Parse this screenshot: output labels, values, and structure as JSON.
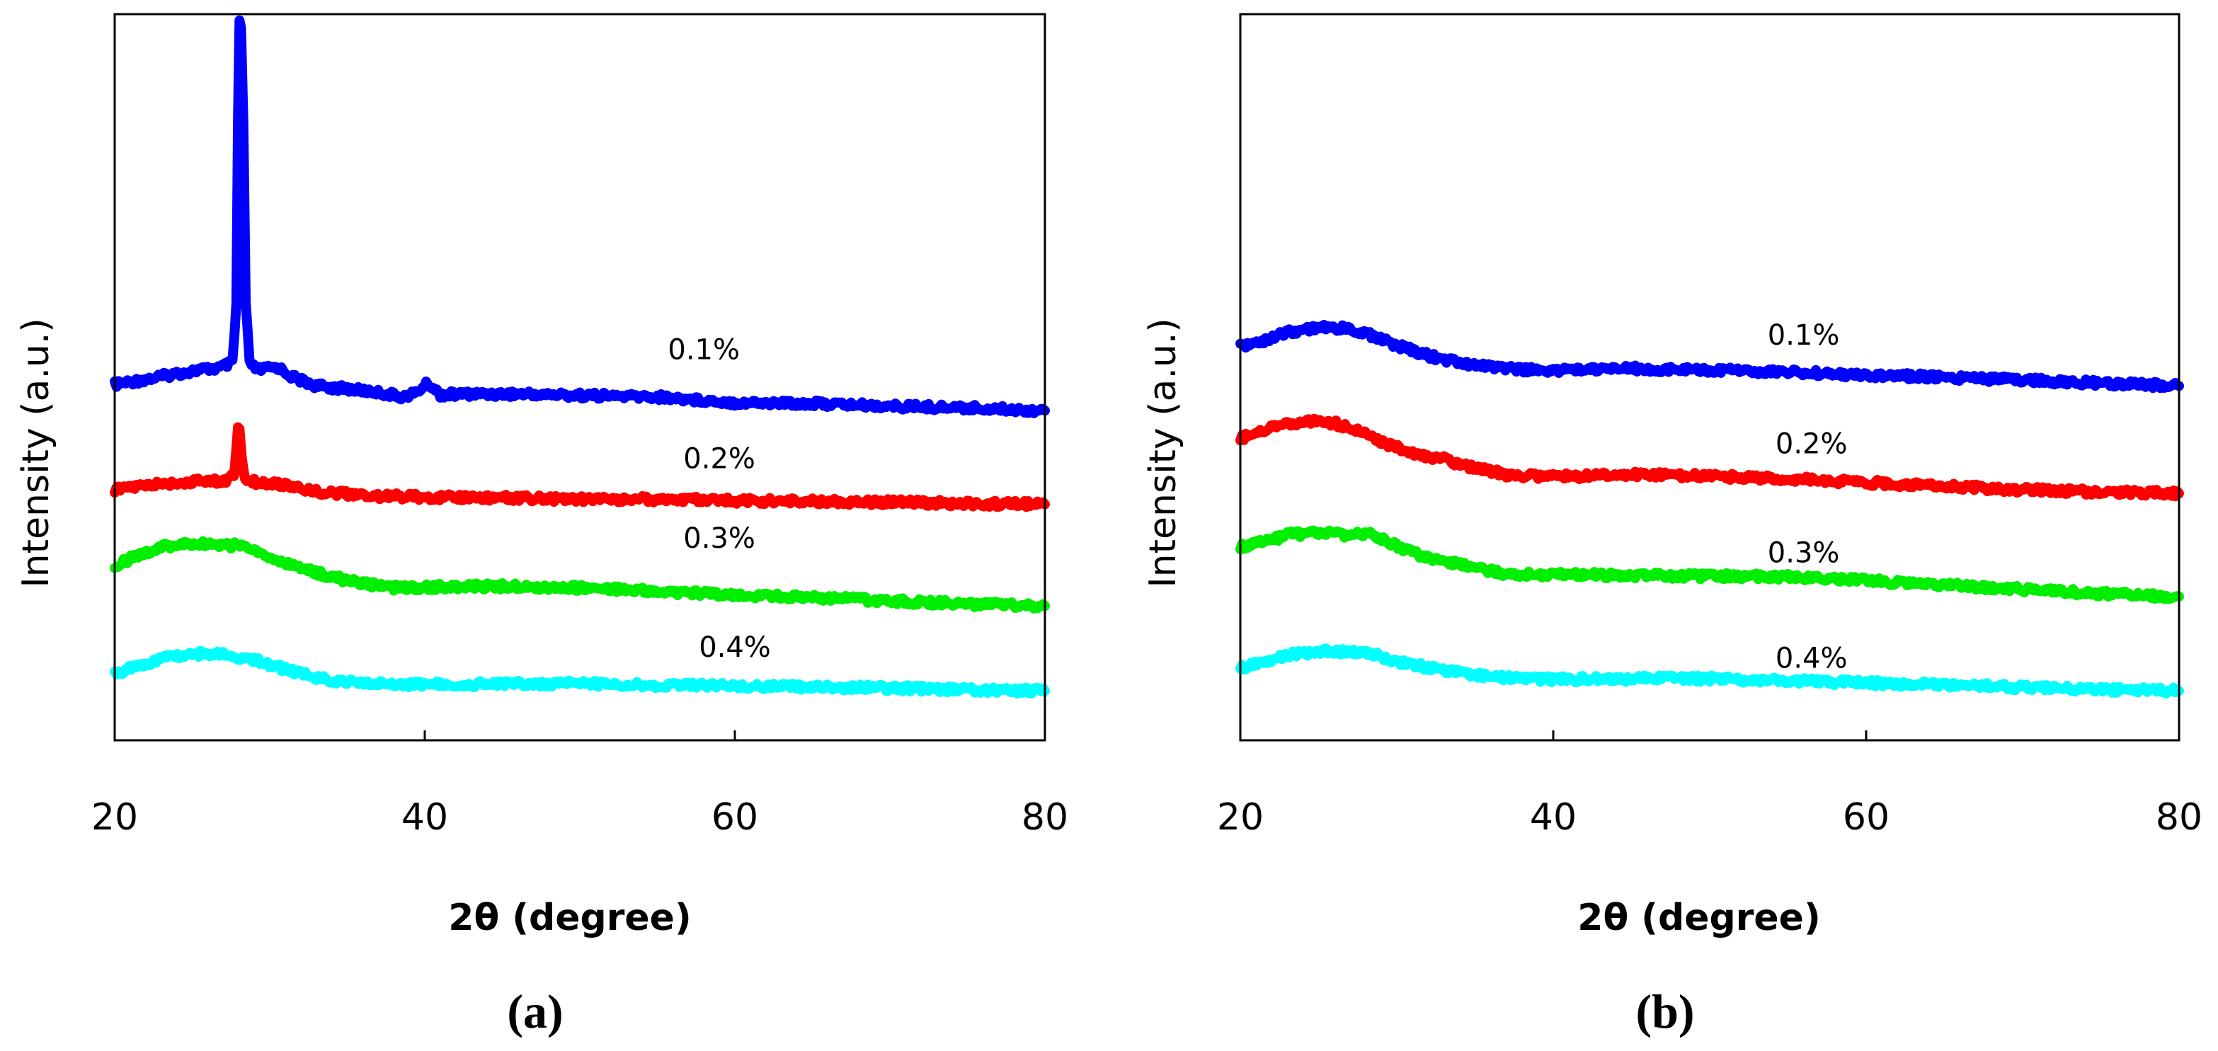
{
  "chart_data": [
    {
      "type": "line",
      "panel_label": "(a)",
      "title": "",
      "xlabel": "2θ (degree)",
      "ylabel": "Intensity (a.u.)",
      "xlim": [
        20,
        80
      ],
      "ylim": [
        0,
        100
      ],
      "xticks": [
        20,
        40,
        60,
        80
      ],
      "grid": false,
      "legend": "inline labels above each curve",
      "series": [
        {
          "name": "0.1%",
          "color": "#0000ff",
          "label_at": [
            58,
            52.5
          ],
          "points": [
            [
              20,
              49
            ],
            [
              22,
              49.7
            ],
            [
              24,
              50.5
            ],
            [
              25.5,
              51
            ],
            [
              26.8,
              51.3
            ],
            [
              27.6,
              52
            ],
            [
              27.85,
              60
            ],
            [
              27.95,
              85
            ],
            [
              28.05,
              99
            ],
            [
              28.15,
              98
            ],
            [
              28.3,
              85
            ],
            [
              28.45,
              60
            ],
            [
              28.7,
              52
            ],
            [
              29.2,
              51
            ],
            [
              30.5,
              51.4
            ],
            [
              31.5,
              50
            ],
            [
              33,
              48.8
            ],
            [
              35,
              48.4
            ],
            [
              37,
              47.9
            ],
            [
              38.6,
              47.3
            ],
            [
              39.4,
              47.8
            ],
            [
              40.2,
              49.2
            ],
            [
              41,
              47.6
            ],
            [
              43,
              47.7
            ],
            [
              46,
              47.7
            ],
            [
              50,
              47.5
            ],
            [
              55,
              47.3
            ],
            [
              60,
              46.5
            ],
            [
              65,
              46.4
            ],
            [
              70,
              46
            ],
            [
              75,
              45.8
            ],
            [
              80,
              45.4
            ]
          ]
        },
        {
          "name": "0.2%",
          "color": "#ff0000",
          "label_at": [
            59,
            37.5
          ],
          "points": [
            [
              20,
              34.5
            ],
            [
              22,
              35.1
            ],
            [
              25,
              35.6
            ],
            [
              27.3,
              35.8
            ],
            [
              27.7,
              36.5
            ],
            [
              27.85,
              40
            ],
            [
              27.95,
              43.5
            ],
            [
              28.05,
              43
            ],
            [
              28.2,
              39
            ],
            [
              28.4,
              36
            ],
            [
              29,
              35.6
            ],
            [
              31,
              35.2
            ],
            [
              33,
              34.3
            ],
            [
              36,
              33.7
            ],
            [
              40,
              33.5
            ],
            [
              45,
              33.4
            ],
            [
              50,
              33.2
            ],
            [
              55,
              33.2
            ],
            [
              60,
              33
            ],
            [
              65,
              32.9
            ],
            [
              70,
              32.8
            ],
            [
              75,
              32.6
            ],
            [
              80,
              32.5
            ]
          ]
        },
        {
          "name": "0.3%",
          "color": "#00ee00",
          "label_at": [
            59,
            26.5
          ],
          "points": [
            [
              20,
              24
            ],
            [
              21.5,
              25.5
            ],
            [
              23,
              26.6
            ],
            [
              25,
              27.1
            ],
            [
              26.5,
              27
            ],
            [
              27.5,
              26.8
            ],
            [
              28.2,
              27.1
            ],
            [
              29,
              26
            ],
            [
              30.5,
              24.7
            ],
            [
              32,
              23.7
            ],
            [
              34,
              22.5
            ],
            [
              36,
              21.6
            ],
            [
              38,
              21
            ],
            [
              40,
              21.1
            ],
            [
              45,
              21.2
            ],
            [
              50,
              21
            ],
            [
              55,
              20.5
            ],
            [
              60,
              20
            ],
            [
              65,
              19.7
            ],
            [
              70,
              19.2
            ],
            [
              75,
              18.8
            ],
            [
              80,
              18.5
            ]
          ]
        },
        {
          "name": "0.4%",
          "color": "#00ffff",
          "label_at": [
            60,
            11.5
          ],
          "points": [
            [
              20,
              9.2
            ],
            [
              21.5,
              10.2
            ],
            [
              23,
              11.3
            ],
            [
              24.5,
              11.8
            ],
            [
              26,
              12
            ],
            [
              27,
              11.9
            ],
            [
              28,
              11.5
            ],
            [
              29.5,
              10.8
            ],
            [
              31,
              9.8
            ],
            [
              33,
              8.6
            ],
            [
              35,
              8
            ],
            [
              38,
              7.7
            ],
            [
              42,
              7.7
            ],
            [
              46,
              7.8
            ],
            [
              50,
              7.8
            ],
            [
              55,
              7.6
            ],
            [
              60,
              7.5
            ],
            [
              65,
              7.3
            ],
            [
              70,
              7.2
            ],
            [
              75,
              7
            ],
            [
              80,
              6.8
            ]
          ]
        }
      ]
    },
    {
      "type": "line",
      "panel_label": "(b)",
      "title": "",
      "xlabel": "2θ (degree)",
      "ylabel": "Intensity (a.u.)",
      "xlim": [
        20,
        80
      ],
      "ylim": [
        0,
        100
      ],
      "xticks": [
        20,
        40,
        60,
        80
      ],
      "grid": false,
      "legend": "inline labels above each curve",
      "series": [
        {
          "name": "0.1%",
          "color": "#0000ff",
          "label_at": [
            56,
            54.5
          ],
          "points": [
            [
              20,
              54.3
            ],
            [
              21.5,
              55
            ],
            [
              23,
              56.2
            ],
            [
              25,
              56.8
            ],
            [
              27,
              56.7
            ],
            [
              28.5,
              55.7
            ],
            [
              30,
              54.4
            ],
            [
              32,
              53
            ],
            [
              34,
              52
            ],
            [
              36,
              51.5
            ],
            [
              38,
              51
            ],
            [
              40,
              51
            ],
            [
              45,
              51.2
            ],
            [
              50,
              51
            ],
            [
              55,
              50.7
            ],
            [
              60,
              50.3
            ],
            [
              65,
              50
            ],
            [
              70,
              49.6
            ],
            [
              75,
              49.2
            ],
            [
              80,
              48.8
            ]
          ]
        },
        {
          "name": "0.2%",
          "color": "#ff0000",
          "label_at": [
            56.5,
            39.5
          ],
          "points": [
            [
              20,
              41.5
            ],
            [
              21.5,
              42.8
            ],
            [
              23,
              43.6
            ],
            [
              24.5,
              43.9
            ],
            [
              26,
              43.7
            ],
            [
              27.5,
              42.6
            ],
            [
              29,
              41.1
            ],
            [
              31,
              39.6
            ],
            [
              33,
              38.7
            ],
            [
              35,
              37.5
            ],
            [
              37,
              36.6
            ],
            [
              40,
              36.3
            ],
            [
              45,
              36.6
            ],
            [
              50,
              36.4
            ],
            [
              55,
              36
            ],
            [
              60,
              35.5
            ],
            [
              65,
              35
            ],
            [
              70,
              34.5
            ],
            [
              75,
              34.2
            ],
            [
              80,
              34
            ]
          ]
        },
        {
          "name": "0.3%",
          "color": "#00ee00",
          "label_at": [
            56,
            24.5
          ],
          "points": [
            [
              20,
              26.6
            ],
            [
              21.5,
              27.3
            ],
            [
              23,
              28.3
            ],
            [
              25,
              28.6
            ],
            [
              27,
              28.3
            ],
            [
              28.2,
              28.6
            ],
            [
              29.5,
              27.2
            ],
            [
              31,
              25.8
            ],
            [
              33,
              24.7
            ],
            [
              35,
              23.7
            ],
            [
              37,
              22.9
            ],
            [
              40,
              22.8
            ],
            [
              45,
              22.7
            ],
            [
              50,
              22.6
            ],
            [
              55,
              22.5
            ],
            [
              60,
              22
            ],
            [
              65,
              21.4
            ],
            [
              70,
              20.8
            ],
            [
              75,
              20.2
            ],
            [
              80,
              19.8
            ]
          ]
        },
        {
          "name": "0.4%",
          "color": "#00ffff",
          "label_at": [
            56.5,
            10
          ],
          "points": [
            [
              20,
              10
            ],
            [
              21.5,
              10.8
            ],
            [
              23,
              11.7
            ],
            [
              25,
              12.3
            ],
            [
              27,
              12.2
            ],
            [
              28.5,
              11.8
            ],
            [
              30,
              10.9
            ],
            [
              32,
              10
            ],
            [
              34,
              9.3
            ],
            [
              36,
              8.7
            ],
            [
              38,
              8.5
            ],
            [
              40,
              8.4
            ],
            [
              45,
              8.5
            ],
            [
              50,
              8.5
            ],
            [
              55,
              8.2
            ],
            [
              60,
              7.9
            ],
            [
              65,
              7.6
            ],
            [
              70,
              7.3
            ],
            [
              75,
              7
            ],
            [
              80,
              6.8
            ]
          ]
        }
      ]
    }
  ]
}
